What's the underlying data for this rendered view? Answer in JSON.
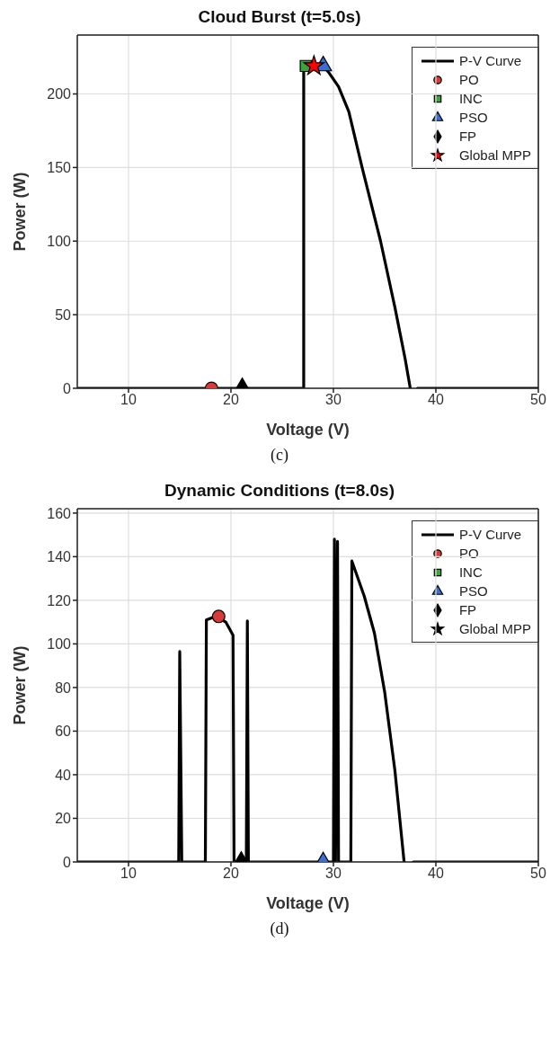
{
  "chart_data": [
    {
      "type": "line",
      "title": "Cloud Burst (t=5.0s)",
      "xlabel": "Voltage (V)",
      "ylabel": "Power (W)",
      "annotations": [
        "(c)"
      ],
      "xlim": [
        5,
        50
      ],
      "xticks": [
        10,
        20,
        30,
        40,
        50
      ],
      "ylim": [
        0,
        240
      ],
      "yticks": [
        0,
        50,
        100,
        150,
        200
      ],
      "grid": true,
      "legend": "top right",
      "series": [
        {
          "name": "P-V Curve",
          "type": "line",
          "color": "#000000",
          "marker": "none",
          "x": [
            5,
            27.1,
            27.1,
            29,
            29.5,
            30.5,
            31.5,
            32.8,
            34.6,
            36,
            37,
            37.5,
            37.8,
            38.2,
            50
          ],
          "values": [
            0,
            0,
            219,
            219,
            215,
            205,
            188,
            150,
            100,
            55,
            20,
            0,
            null,
            0,
            0
          ]
        },
        {
          "name": "PO",
          "type": "scatter",
          "color": "#d73a3a",
          "marker": "circle",
          "x": [
            18.1
          ],
          "values": [
            0
          ]
        },
        {
          "name": "INC",
          "type": "scatter",
          "color": "#3aa53a",
          "marker": "square",
          "x": [
            27.3
          ],
          "values": [
            219
          ]
        },
        {
          "name": "PSO",
          "type": "scatter",
          "color": "#3a6ed0",
          "marker": "triangle",
          "x": [
            29
          ],
          "values": [
            219
          ]
        },
        {
          "name": "FP",
          "type": "scatter",
          "color": "#000000",
          "marker": "diamond",
          "x": [
            21.1
          ],
          "values": [
            0
          ]
        },
        {
          "name": "Global MPP",
          "type": "scatter",
          "color": "#ff0000",
          "marker": "star",
          "x": [
            28.1
          ],
          "values": [
            219
          ]
        }
      ]
    },
    {
      "type": "line",
      "title": "Dynamic Conditions (t=8.0s)",
      "xlabel": "Voltage (V)",
      "ylabel": "Power (W)",
      "annotations": [
        "(d)"
      ],
      "xlim": [
        5,
        50
      ],
      "xticks": [
        10,
        20,
        30,
        40,
        50
      ],
      "ylim": [
        0,
        162
      ],
      "yticks": [
        0,
        20,
        40,
        60,
        80,
        100,
        120,
        140,
        160
      ],
      "grid": true,
      "legend": "top right",
      "series": [
        {
          "name": "P-V Curve",
          "type": "line",
          "color": "#000000",
          "marker": "none",
          "x": [
            5,
            14.9,
            15,
            15.2,
            17.5,
            17.6,
            18.5,
            19.5,
            20.2,
            20.3,
            21.5,
            21.6,
            21.7,
            30,
            30.1,
            30.2,
            30.4,
            30.5,
            31.7,
            31.8,
            33,
            34,
            35,
            36,
            36.9,
            37.3,
            37.8,
            50
          ],
          "values": [
            0,
            0,
            96.5,
            0,
            0,
            111,
            112.6,
            110,
            104,
            0,
            0,
            110.5,
            0,
            0,
            148,
            0,
            147,
            0,
            0,
            138,
            122,
            105,
            78,
            42,
            0,
            null,
            0,
            0
          ]
        },
        {
          "name": "PO",
          "type": "scatter",
          "color": "#d73a3a",
          "marker": "circle",
          "x": [
            18.8
          ],
          "values": [
            112.6
          ]
        },
        {
          "name": "INC",
          "type": "scatter",
          "color": "#3aa53a",
          "marker": "square"
        },
        {
          "name": "PSO",
          "type": "scatter",
          "color": "#3a6ed0",
          "marker": "triangle",
          "x": [
            29
          ],
          "values": [
            0
          ]
        },
        {
          "name": "FP",
          "type": "scatter",
          "color": "#000000",
          "marker": "diamond",
          "x": [
            21
          ],
          "values": [
            0
          ]
        },
        {
          "name": "Global MPP",
          "type": "scatter",
          "color": "#000000",
          "marker": "star"
        }
      ]
    }
  ]
}
